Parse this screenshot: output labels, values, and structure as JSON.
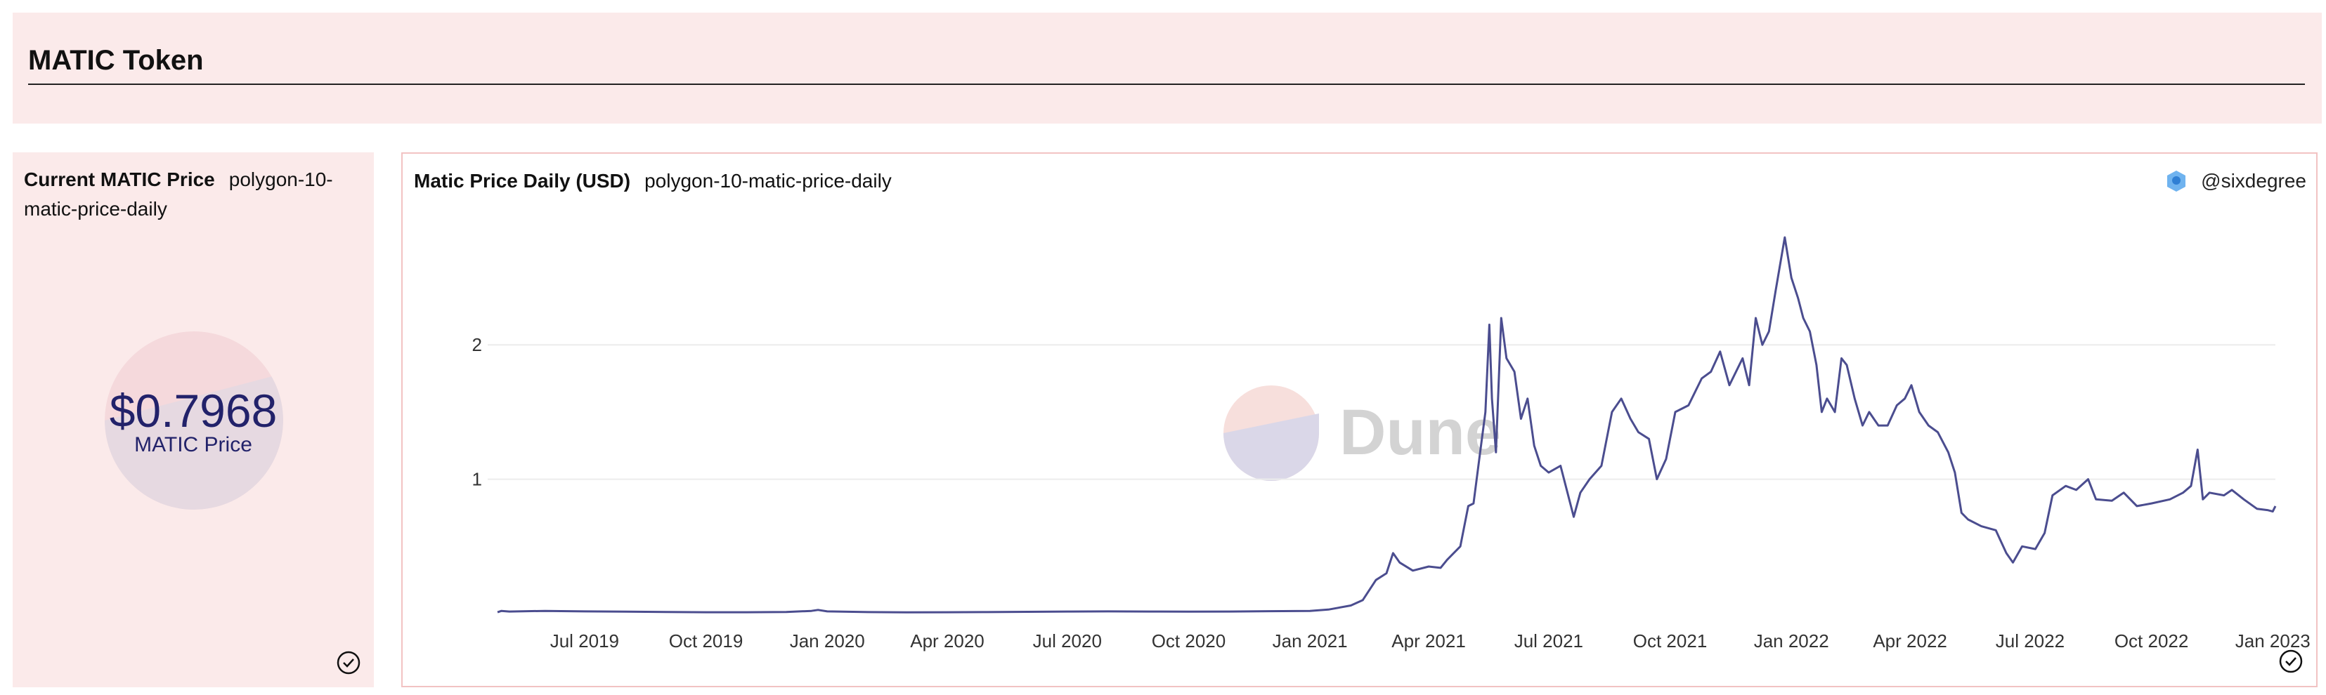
{
  "header": {
    "title": "MATIC Token"
  },
  "counter": {
    "title": "Current MATIC Price",
    "query": "polygon-10-matic-price-daily",
    "value": "$0.7968",
    "label": "MATIC Price"
  },
  "chart_panel": {
    "title": "Matic Price Daily (USD)",
    "query": "polygon-10-matic-price-daily",
    "author": "@sixdegree",
    "watermark": "Dune"
  },
  "colors": {
    "line": "#4b4d8f",
    "panel_bg": "#fbeaea",
    "accent": "#22226a"
  },
  "icons": {
    "check": "check-circle-icon",
    "author": "team-avatar-icon",
    "logo": "dune-logo-icon"
  },
  "chart_data": {
    "type": "line",
    "title": "",
    "xlabel": "",
    "ylabel": "",
    "x_ticks": [
      "Jul 2019",
      "Oct 2019",
      "Jan 2020",
      "Apr 2020",
      "Jul 2020",
      "Oct 2020",
      "Jan 2021",
      "Apr 2021",
      "Jul 2021",
      "Oct 2021",
      "Jan 2022",
      "Apr 2022",
      "Jul 2022",
      "Oct 2022",
      "Jan 2023"
    ],
    "y_ticks": [
      1,
      2
    ],
    "xlim": [
      "2019-04-26",
      "2023-01-03"
    ],
    "ylim": [
      0,
      2.9
    ],
    "grid": true,
    "series": [
      {
        "name": "",
        "points": [
          [
            "2019-04-26",
            0.01
          ],
          [
            "2019-04-29",
            0.02
          ],
          [
            "2019-05-05",
            0.015
          ],
          [
            "2019-06-01",
            0.02
          ],
          [
            "2019-07-01",
            0.016
          ],
          [
            "2019-08-01",
            0.014
          ],
          [
            "2019-09-01",
            0.012
          ],
          [
            "2019-10-01",
            0.01
          ],
          [
            "2019-11-01",
            0.01
          ],
          [
            "2019-12-01",
            0.012
          ],
          [
            "2019-12-20",
            0.02
          ],
          [
            "2019-12-25",
            0.027
          ],
          [
            "2020-01-01",
            0.016
          ],
          [
            "2020-02-01",
            0.011
          ],
          [
            "2020-03-01",
            0.009
          ],
          [
            "2020-04-01",
            0.01
          ],
          [
            "2020-05-01",
            0.011
          ],
          [
            "2020-06-01",
            0.013
          ],
          [
            "2020-07-01",
            0.015
          ],
          [
            "2020-08-01",
            0.016
          ],
          [
            "2020-09-01",
            0.015
          ],
          [
            "2020-10-01",
            0.014
          ],
          [
            "2020-11-01",
            0.015
          ],
          [
            "2020-12-01",
            0.018
          ],
          [
            "2021-01-01",
            0.02
          ],
          [
            "2021-01-15",
            0.03
          ],
          [
            "2021-02-01",
            0.06
          ],
          [
            "2021-02-10",
            0.1
          ],
          [
            "2021-02-20",
            0.25
          ],
          [
            "2021-02-28",
            0.3
          ],
          [
            "2021-03-05",
            0.45
          ],
          [
            "2021-03-10",
            0.38
          ],
          [
            "2021-03-20",
            0.32
          ],
          [
            "2021-04-01",
            0.35
          ],
          [
            "2021-04-10",
            0.34
          ],
          [
            "2021-04-15",
            0.4
          ],
          [
            "2021-04-25",
            0.5
          ],
          [
            "2021-05-01",
            0.8
          ],
          [
            "2021-05-05",
            0.82
          ],
          [
            "2021-05-10",
            1.2
          ],
          [
            "2021-05-14",
            1.5
          ],
          [
            "2021-05-17",
            2.15
          ],
          [
            "2021-05-19",
            1.6
          ],
          [
            "2021-05-22",
            1.2
          ],
          [
            "2021-05-26",
            2.2
          ],
          [
            "2021-05-30",
            1.9
          ],
          [
            "2021-06-05",
            1.8
          ],
          [
            "2021-06-10",
            1.45
          ],
          [
            "2021-06-15",
            1.6
          ],
          [
            "2021-06-20",
            1.25
          ],
          [
            "2021-06-25",
            1.1
          ],
          [
            "2021-07-01",
            1.05
          ],
          [
            "2021-07-10",
            1.1
          ],
          [
            "2021-07-20",
            0.72
          ],
          [
            "2021-07-25",
            0.9
          ],
          [
            "2021-08-01",
            1.0
          ],
          [
            "2021-08-10",
            1.1
          ],
          [
            "2021-08-18",
            1.5
          ],
          [
            "2021-08-25",
            1.6
          ],
          [
            "2021-09-01",
            1.45
          ],
          [
            "2021-09-07",
            1.35
          ],
          [
            "2021-09-15",
            1.3
          ],
          [
            "2021-09-21",
            1.0
          ],
          [
            "2021-09-28",
            1.15
          ],
          [
            "2021-10-05",
            1.5
          ],
          [
            "2021-10-15",
            1.55
          ],
          [
            "2021-10-25",
            1.75
          ],
          [
            "2021-11-01",
            1.8
          ],
          [
            "2021-11-08",
            1.95
          ],
          [
            "2021-11-15",
            1.7
          ],
          [
            "2021-11-25",
            1.9
          ],
          [
            "2021-11-30",
            1.7
          ],
          [
            "2021-12-05",
            2.2
          ],
          [
            "2021-12-10",
            2.0
          ],
          [
            "2021-12-15",
            2.1
          ],
          [
            "2021-12-20",
            2.4
          ],
          [
            "2021-12-27",
            2.8
          ],
          [
            "2022-01-01",
            2.5
          ],
          [
            "2022-01-06",
            2.35
          ],
          [
            "2022-01-10",
            2.2
          ],
          [
            "2022-01-15",
            2.1
          ],
          [
            "2022-01-20",
            1.85
          ],
          [
            "2022-01-24",
            1.5
          ],
          [
            "2022-01-28",
            1.6
          ],
          [
            "2022-02-03",
            1.5
          ],
          [
            "2022-02-08",
            1.9
          ],
          [
            "2022-02-12",
            1.85
          ],
          [
            "2022-02-18",
            1.6
          ],
          [
            "2022-02-24",
            1.4
          ],
          [
            "2022-03-01",
            1.5
          ],
          [
            "2022-03-08",
            1.4
          ],
          [
            "2022-03-15",
            1.4
          ],
          [
            "2022-03-22",
            1.55
          ],
          [
            "2022-03-28",
            1.6
          ],
          [
            "2022-04-02",
            1.7
          ],
          [
            "2022-04-08",
            1.5
          ],
          [
            "2022-04-15",
            1.4
          ],
          [
            "2022-04-22",
            1.35
          ],
          [
            "2022-04-30",
            1.2
          ],
          [
            "2022-05-05",
            1.05
          ],
          [
            "2022-05-10",
            0.75
          ],
          [
            "2022-05-15",
            0.7
          ],
          [
            "2022-05-25",
            0.65
          ],
          [
            "2022-06-05",
            0.62
          ],
          [
            "2022-06-13",
            0.45
          ],
          [
            "2022-06-18",
            0.38
          ],
          [
            "2022-06-25",
            0.5
          ],
          [
            "2022-07-05",
            0.48
          ],
          [
            "2022-07-12",
            0.6
          ],
          [
            "2022-07-18",
            0.88
          ],
          [
            "2022-07-28",
            0.95
          ],
          [
            "2022-08-05",
            0.92
          ],
          [
            "2022-08-14",
            1.0
          ],
          [
            "2022-08-20",
            0.85
          ],
          [
            "2022-09-01",
            0.84
          ],
          [
            "2022-09-10",
            0.9
          ],
          [
            "2022-09-20",
            0.8
          ],
          [
            "2022-10-01",
            0.82
          ],
          [
            "2022-10-15",
            0.85
          ],
          [
            "2022-10-25",
            0.9
          ],
          [
            "2022-10-31",
            0.95
          ],
          [
            "2022-11-05",
            1.22
          ],
          [
            "2022-11-09",
            0.85
          ],
          [
            "2022-11-14",
            0.9
          ],
          [
            "2022-11-25",
            0.88
          ],
          [
            "2022-12-01",
            0.92
          ],
          [
            "2022-12-10",
            0.85
          ],
          [
            "2022-12-20",
            0.78
          ],
          [
            "2022-12-28",
            0.77
          ],
          [
            "2023-01-01",
            0.76
          ],
          [
            "2023-01-03",
            0.8
          ]
        ]
      }
    ]
  }
}
